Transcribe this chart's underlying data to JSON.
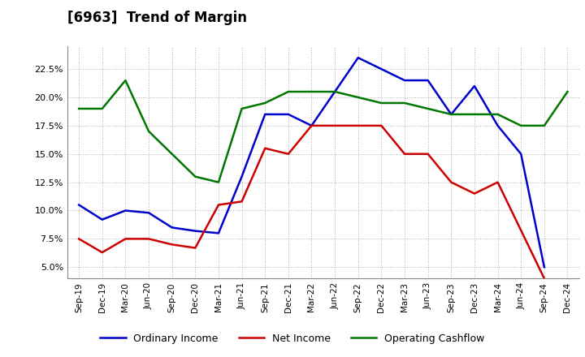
{
  "title": "[6963]  Trend of Margin",
  "x_labels": [
    "Sep-19",
    "Dec-19",
    "Mar-20",
    "Jun-20",
    "Sep-20",
    "Dec-20",
    "Mar-21",
    "Jun-21",
    "Sep-21",
    "Dec-21",
    "Mar-22",
    "Jun-22",
    "Sep-22",
    "Dec-22",
    "Mar-23",
    "Jun-23",
    "Sep-23",
    "Dec-23",
    "Mar-24",
    "Jun-24",
    "Sep-24",
    "Dec-24"
  ],
  "ordinary_income": [
    10.5,
    9.2,
    10.0,
    9.8,
    8.5,
    8.2,
    8.0,
    13.0,
    18.5,
    18.5,
    17.5,
    20.5,
    23.5,
    22.5,
    21.5,
    21.5,
    18.5,
    21.0,
    17.5,
    15.0,
    5.0,
    null
  ],
  "net_income": [
    7.5,
    6.3,
    7.5,
    7.5,
    7.0,
    6.7,
    10.5,
    10.8,
    15.5,
    15.0,
    17.5,
    17.5,
    17.5,
    17.5,
    15.0,
    15.0,
    12.5,
    11.5,
    12.5,
    null,
    4.0,
    null
  ],
  "operating_cashflow": [
    19.0,
    19.0,
    21.5,
    17.0,
    15.0,
    13.0,
    12.5,
    19.0,
    19.5,
    20.5,
    20.5,
    20.5,
    20.0,
    19.5,
    19.5,
    19.0,
    18.5,
    18.5,
    18.5,
    17.5,
    17.5,
    20.5
  ],
  "ordinary_income_color": "#0000cc",
  "net_income_color": "#cc0000",
  "operating_cashflow_color": "#007700",
  "background_color": "#ffffff",
  "grid_color": "#b0b0b0",
  "ylim": [
    4.0,
    24.5
  ],
  "yticks": [
    5.0,
    7.5,
    10.0,
    12.5,
    15.0,
    17.5,
    20.0,
    22.5
  ],
  "legend_labels": [
    "Ordinary Income",
    "Net Income",
    "Operating Cashflow"
  ],
  "line_width": 1.8
}
